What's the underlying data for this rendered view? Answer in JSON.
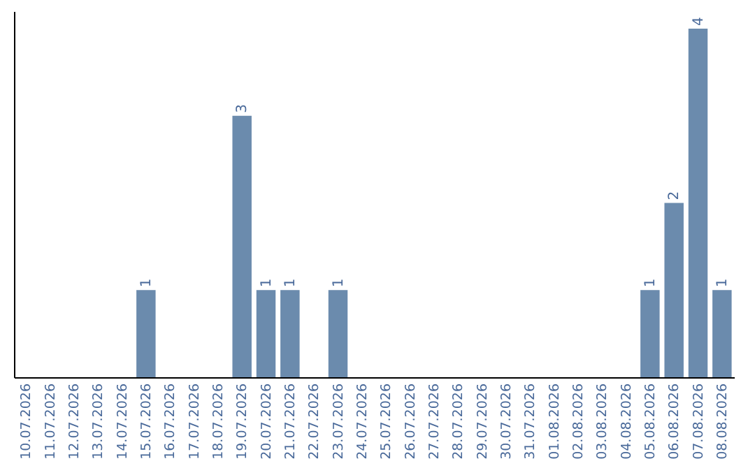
{
  "chart_data": {
    "type": "bar",
    "categories": [
      "10.07.2026",
      "11.07.2026",
      "12.07.2026",
      "13.07.2026",
      "14.07.2026",
      "15.07.2026",
      "16.07.2026",
      "17.07.2026",
      "18.07.2026",
      "19.07.2026",
      "20.07.2026",
      "21.07.2026",
      "22.07.2026",
      "23.07.2026",
      "24.07.2026",
      "25.07.2026",
      "26.07.2026",
      "27.07.2026",
      "28.07.2026",
      "29.07.2026",
      "30.07.2026",
      "31.07.2026",
      "01.08.2026",
      "02.08.2026",
      "03.08.2026",
      "04.08.2026",
      "05.08.2026",
      "06.08.2026",
      "07.08.2026",
      "08.08.2026"
    ],
    "values": [
      0,
      0,
      0,
      0,
      0,
      1,
      0,
      0,
      0,
      3,
      1,
      1,
      0,
      1,
      0,
      0,
      0,
      0,
      0,
      0,
      0,
      0,
      0,
      0,
      0,
      0,
      1,
      2,
      4,
      1
    ],
    "value_labels": [
      null,
      null,
      null,
      null,
      null,
      "1",
      null,
      null,
      null,
      "3",
      "1",
      "1",
      null,
      "1",
      null,
      null,
      null,
      null,
      null,
      null,
      null,
      null,
      null,
      null,
      null,
      null,
      "1",
      "2",
      "4",
      "1"
    ],
    "color": "#6b8bad",
    "ylim": [
      0,
      4.2
    ],
    "tick_labels": "x"
  }
}
